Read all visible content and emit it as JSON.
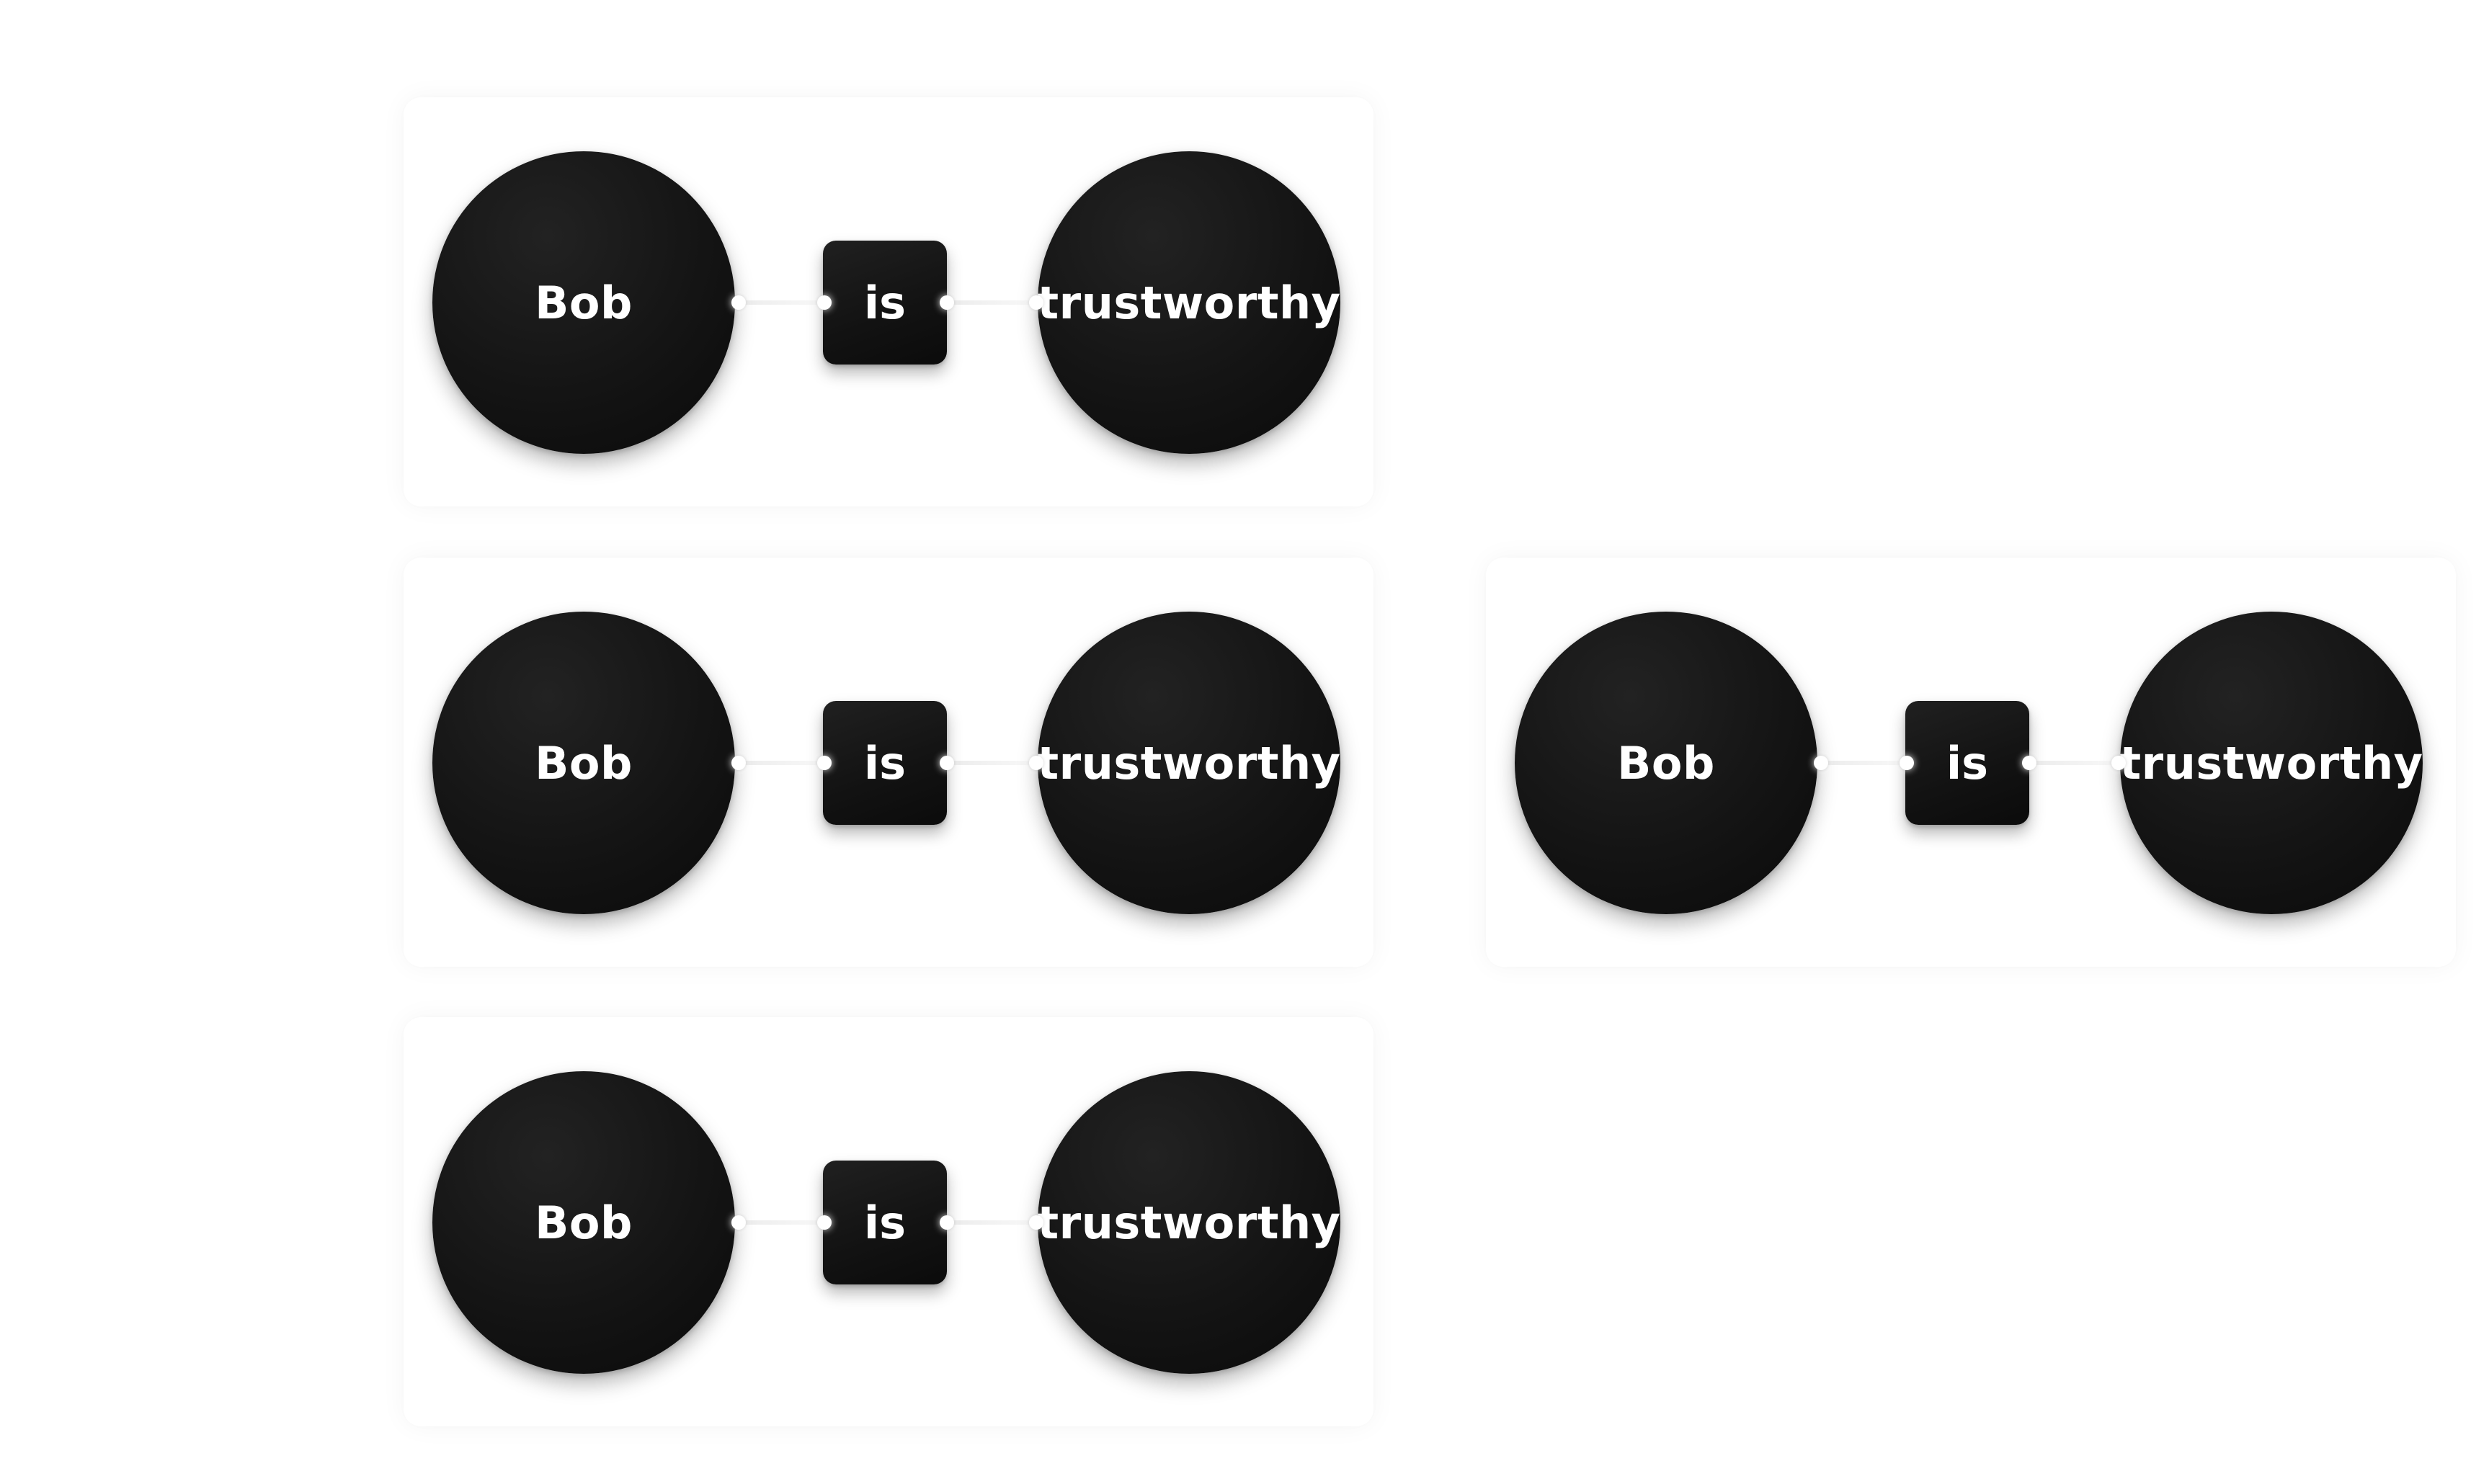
{
  "cards": [
    {
      "subject": "Bob",
      "predicate": "is",
      "object": "trustworthy"
    },
    {
      "subject": "Bob",
      "predicate": "is",
      "object": "trustworthy"
    },
    {
      "subject": "Bob",
      "predicate": "is",
      "object": "trustworthy"
    },
    {
      "subject": "Bob",
      "predicate": "is",
      "object": "trustworthy"
    }
  ],
  "colors": {
    "background": "#ffffff",
    "node_fill": "#111111",
    "node_text": "#ffffff",
    "port": "#ffffff"
  }
}
